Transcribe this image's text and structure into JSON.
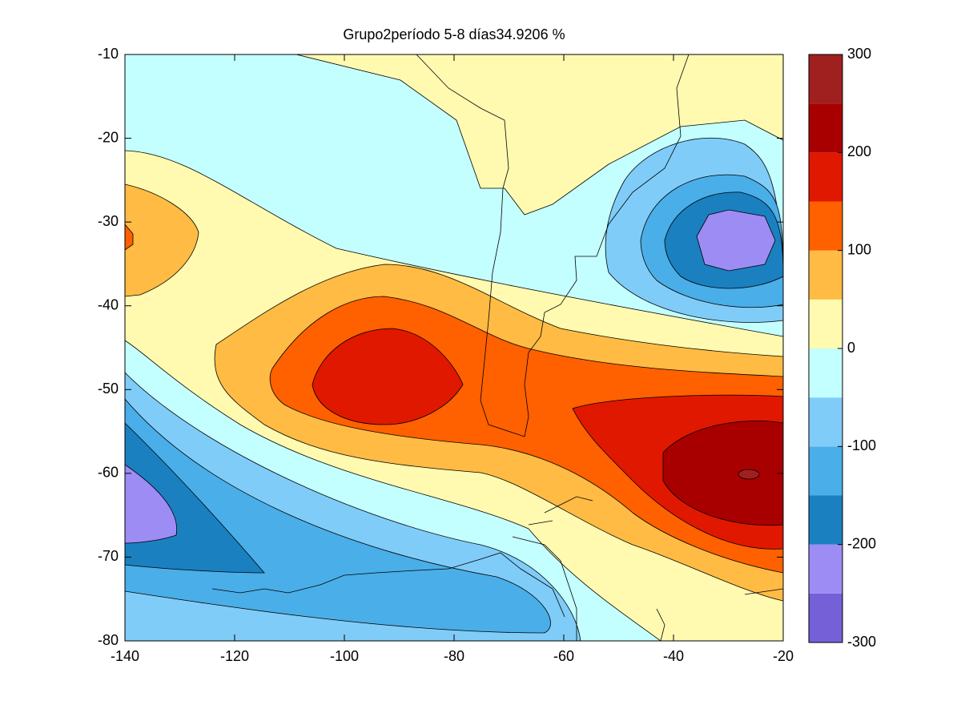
{
  "chart_data": {
    "type": "contour",
    "title": "Grupo2período 5-8 días34.9206 %",
    "xlim": [
      -140,
      -20
    ],
    "xticks": [
      -140,
      -120,
      -100,
      -80,
      -60,
      -40,
      -20
    ],
    "ylim": [
      -80,
      -10
    ],
    "yticks": [
      -80,
      -70,
      -60,
      -50,
      -40,
      -30,
      -20,
      -10
    ],
    "colorbar": {
      "clim": [
        -300,
        300
      ],
      "ticks": [
        -300,
        -200,
        -100,
        0,
        100,
        200,
        300
      ],
      "levels": [
        -300,
        -250,
        -200,
        -150,
        -100,
        -50,
        0,
        50,
        100,
        150,
        200,
        250,
        300
      ],
      "colors": [
        "#7560d8",
        "#9e8cf5",
        "#1a80c0",
        "#4aaee8",
        "#80ccf8",
        "#c4ffff",
        "#fffab0",
        "#ffbb44",
        "#ff6000",
        "#e01800",
        "#a80000",
        "#a02020"
      ]
    }
  }
}
